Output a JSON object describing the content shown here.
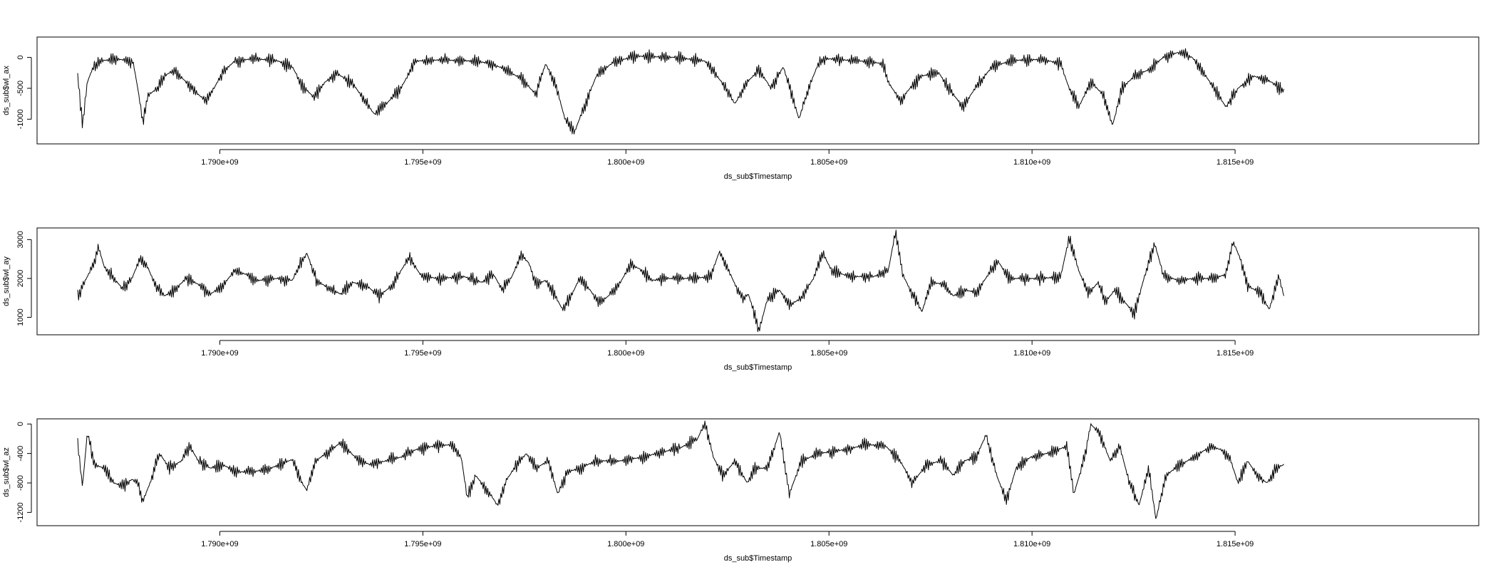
{
  "colors": {
    "background": "#ffffff",
    "line": "#000000",
    "box": "#000000"
  },
  "chart_data": [
    {
      "type": "line",
      "xlabel": "ds_sub$Timestamp",
      "ylabel": "ds_sub$wl_ax",
      "x_range": [
        1786500000,
        1816200000
      ],
      "xlim": [
        1785500000,
        1821000000
      ],
      "ylim": [
        -1400,
        330
      ],
      "x_ticks": [
        1790000000,
        1795000000,
        1800000000,
        1805000000,
        1810000000,
        1815000000
      ],
      "x_tick_labels": [
        "1.790e+09",
        "1.795e+09",
        "1.800e+09",
        "1.805e+09",
        "1.810e+09",
        "1.815e+09"
      ],
      "y_ticks": [
        0,
        -500,
        -1000
      ],
      "y_tick_labels": [
        "0",
        "-500",
        "-1000"
      ],
      "anchors": [
        [
          0.0,
          -300
        ],
        [
          0.004,
          -1080
        ],
        [
          0.008,
          -400
        ],
        [
          0.013,
          -150
        ],
        [
          0.02,
          -50
        ],
        [
          0.035,
          -30
        ],
        [
          0.046,
          -80
        ],
        [
          0.05,
          -520
        ],
        [
          0.054,
          -1050
        ],
        [
          0.058,
          -620
        ],
        [
          0.066,
          -500
        ],
        [
          0.072,
          -300
        ],
        [
          0.08,
          -200
        ],
        [
          0.09,
          -400
        ],
        [
          0.1,
          -600
        ],
        [
          0.106,
          -700
        ],
        [
          0.113,
          -500
        ],
        [
          0.12,
          -250
        ],
        [
          0.13,
          -60
        ],
        [
          0.145,
          -20
        ],
        [
          0.165,
          -50
        ],
        [
          0.178,
          -150
        ],
        [
          0.186,
          -450
        ],
        [
          0.196,
          -650
        ],
        [
          0.205,
          -400
        ],
        [
          0.215,
          -260
        ],
        [
          0.228,
          -420
        ],
        [
          0.238,
          -700
        ],
        [
          0.246,
          -920
        ],
        [
          0.256,
          -750
        ],
        [
          0.268,
          -500
        ],
        [
          0.28,
          -60
        ],
        [
          0.3,
          -40
        ],
        [
          0.33,
          -60
        ],
        [
          0.343,
          -100
        ],
        [
          0.355,
          -200
        ],
        [
          0.368,
          -350
        ],
        [
          0.38,
          -600
        ],
        [
          0.388,
          -100
        ],
        [
          0.396,
          -420
        ],
        [
          0.404,
          -1000
        ],
        [
          0.412,
          -1200
        ],
        [
          0.42,
          -800
        ],
        [
          0.43,
          -300
        ],
        [
          0.445,
          -60
        ],
        [
          0.465,
          20
        ],
        [
          0.495,
          0
        ],
        [
          0.52,
          -60
        ],
        [
          0.534,
          -400
        ],
        [
          0.545,
          -750
        ],
        [
          0.555,
          -400
        ],
        [
          0.565,
          -200
        ],
        [
          0.575,
          -500
        ],
        [
          0.585,
          -150
        ],
        [
          0.592,
          -600
        ],
        [
          0.598,
          -1000
        ],
        [
          0.606,
          -500
        ],
        [
          0.614,
          -100
        ],
        [
          0.62,
          -20
        ],
        [
          0.65,
          -60
        ],
        [
          0.668,
          -100
        ],
        [
          0.672,
          -400
        ],
        [
          0.682,
          -700
        ],
        [
          0.69,
          -500
        ],
        [
          0.7,
          -300
        ],
        [
          0.714,
          -250
        ],
        [
          0.724,
          -550
        ],
        [
          0.734,
          -800
        ],
        [
          0.744,
          -500
        ],
        [
          0.758,
          -150
        ],
        [
          0.775,
          -50
        ],
        [
          0.8,
          -30
        ],
        [
          0.815,
          -100
        ],
        [
          0.822,
          -500
        ],
        [
          0.83,
          -800
        ],
        [
          0.84,
          -400
        ],
        [
          0.85,
          -600
        ],
        [
          0.858,
          -1100
        ],
        [
          0.866,
          -500
        ],
        [
          0.876,
          -300
        ],
        [
          0.888,
          -200
        ],
        [
          0.9,
          0
        ],
        [
          0.912,
          80
        ],
        [
          0.924,
          0
        ],
        [
          0.932,
          -200
        ],
        [
          0.942,
          -500
        ],
        [
          0.952,
          -800
        ],
        [
          0.962,
          -500
        ],
        [
          0.975,
          -300
        ],
        [
          0.99,
          -400
        ],
        [
          1.0,
          -550
        ]
      ]
    },
    {
      "type": "line",
      "xlabel": "ds_sub$Timestamp",
      "ylabel": "ds_sub$wl_ay",
      "x_range": [
        1786500000,
        1816200000
      ],
      "xlim": [
        1785500000,
        1821000000
      ],
      "ylim": [
        550,
        3300
      ],
      "x_ticks": [
        1790000000,
        1795000000,
        1800000000,
        1805000000,
        1810000000,
        1815000000
      ],
      "x_tick_labels": [
        "1.790e+09",
        "1.795e+09",
        "1.800e+09",
        "1.805e+09",
        "1.810e+09",
        "1.815e+09"
      ],
      "y_ticks": [
        1000,
        2000,
        3000
      ],
      "y_tick_labels": [
        "1000",
        "2000",
        "3000"
      ],
      "anchors": [
        [
          0.0,
          1550
        ],
        [
          0.008,
          2050
        ],
        [
          0.014,
          2400
        ],
        [
          0.017,
          2850
        ],
        [
          0.022,
          2300
        ],
        [
          0.03,
          2000
        ],
        [
          0.037,
          1750
        ],
        [
          0.045,
          2000
        ],
        [
          0.052,
          2550
        ],
        [
          0.058,
          2300
        ],
        [
          0.064,
          1850
        ],
        [
          0.072,
          1550
        ],
        [
          0.08,
          1700
        ],
        [
          0.09,
          2000
        ],
        [
          0.1,
          1850
        ],
        [
          0.11,
          1600
        ],
        [
          0.12,
          1800
        ],
        [
          0.13,
          2200
        ],
        [
          0.14,
          2100
        ],
        [
          0.15,
          1950
        ],
        [
          0.165,
          2000
        ],
        [
          0.178,
          1950
        ],
        [
          0.185,
          2400
        ],
        [
          0.19,
          2650
        ],
        [
          0.198,
          1950
        ],
        [
          0.208,
          1750
        ],
        [
          0.218,
          1600
        ],
        [
          0.228,
          1900
        ],
        [
          0.24,
          1800
        ],
        [
          0.25,
          1550
        ],
        [
          0.26,
          1800
        ],
        [
          0.268,
          2200
        ],
        [
          0.275,
          2550
        ],
        [
          0.285,
          2050
        ],
        [
          0.3,
          2000
        ],
        [
          0.32,
          2050
        ],
        [
          0.335,
          1900
        ],
        [
          0.345,
          2100
        ],
        [
          0.352,
          1700
        ],
        [
          0.36,
          2050
        ],
        [
          0.368,
          2600
        ],
        [
          0.374,
          2400
        ],
        [
          0.38,
          1850
        ],
        [
          0.388,
          1950
        ],
        [
          0.395,
          1600
        ],
        [
          0.402,
          1200
        ],
        [
          0.41,
          1600
        ],
        [
          0.416,
          2000
        ],
        [
          0.425,
          1700
        ],
        [
          0.432,
          1350
        ],
        [
          0.44,
          1550
        ],
        [
          0.45,
          1900
        ],
        [
          0.458,
          2350
        ],
        [
          0.466,
          2250
        ],
        [
          0.476,
          1950
        ],
        [
          0.49,
          2000
        ],
        [
          0.51,
          2000
        ],
        [
          0.525,
          2050
        ],
        [
          0.532,
          2700
        ],
        [
          0.54,
          2200
        ],
        [
          0.547,
          1700
        ],
        [
          0.552,
          1500
        ],
        [
          0.556,
          1600
        ],
        [
          0.56,
          1200
        ],
        [
          0.565,
          650
        ],
        [
          0.572,
          1500
        ],
        [
          0.582,
          1700
        ],
        [
          0.59,
          1300
        ],
        [
          0.6,
          1500
        ],
        [
          0.61,
          2000
        ],
        [
          0.618,
          2650
        ],
        [
          0.625,
          2200
        ],
        [
          0.64,
          2050
        ],
        [
          0.66,
          2050
        ],
        [
          0.672,
          2200
        ],
        [
          0.678,
          3200
        ],
        [
          0.684,
          2100
        ],
        [
          0.692,
          1600
        ],
        [
          0.7,
          1150
        ],
        [
          0.708,
          1900
        ],
        [
          0.718,
          1850
        ],
        [
          0.726,
          1550
        ],
        [
          0.735,
          1700
        ],
        [
          0.745,
          1650
        ],
        [
          0.755,
          2100
        ],
        [
          0.763,
          2450
        ],
        [
          0.772,
          2000
        ],
        [
          0.8,
          2000
        ],
        [
          0.815,
          2050
        ],
        [
          0.822,
          3050
        ],
        [
          0.83,
          2200
        ],
        [
          0.838,
          1600
        ],
        [
          0.846,
          1900
        ],
        [
          0.852,
          1400
        ],
        [
          0.86,
          1700
        ],
        [
          0.868,
          1400
        ],
        [
          0.876,
          1100
        ],
        [
          0.884,
          2000
        ],
        [
          0.893,
          2900
        ],
        [
          0.9,
          2100
        ],
        [
          0.912,
          1950
        ],
        [
          0.925,
          2000
        ],
        [
          0.94,
          2000
        ],
        [
          0.952,
          2100
        ],
        [
          0.958,
          2950
        ],
        [
          0.964,
          2500
        ],
        [
          0.97,
          1800
        ],
        [
          0.98,
          1650
        ],
        [
          0.988,
          1200
        ],
        [
          0.996,
          2050
        ],
        [
          1.0,
          1550
        ]
      ]
    },
    {
      "type": "line",
      "xlabel": "ds_sub$Timestamp",
      "ylabel": "ds_sub$wl_az",
      "x_range": [
        1786500000,
        1816200000
      ],
      "xlim": [
        1785500000,
        1821000000
      ],
      "ylim": [
        -1380,
        70
      ],
      "x_ticks": [
        1790000000,
        1795000000,
        1800000000,
        1805000000,
        1810000000,
        1815000000
      ],
      "x_tick_labels": [
        "1.790e+09",
        "1.795e+09",
        "1.800e+09",
        "1.805e+09",
        "1.810e+09",
        "1.815e+09"
      ],
      "y_ticks": [
        0,
        -400,
        -800,
        -1200
      ],
      "y_tick_labels": [
        "0",
        "-400",
        "-800",
        "-1200"
      ],
      "anchors": [
        [
          0.0,
          -250
        ],
        [
          0.004,
          -850
        ],
        [
          0.008,
          -120
        ],
        [
          0.014,
          -550
        ],
        [
          0.022,
          -600
        ],
        [
          0.03,
          -800
        ],
        [
          0.038,
          -850
        ],
        [
          0.045,
          -750
        ],
        [
          0.05,
          -800
        ],
        [
          0.054,
          -1050
        ],
        [
          0.06,
          -800
        ],
        [
          0.068,
          -400
        ],
        [
          0.076,
          -600
        ],
        [
          0.086,
          -500
        ],
        [
          0.093,
          -300
        ],
        [
          0.1,
          -500
        ],
        [
          0.11,
          -600
        ],
        [
          0.12,
          -550
        ],
        [
          0.132,
          -650
        ],
        [
          0.145,
          -650
        ],
        [
          0.16,
          -600
        ],
        [
          0.178,
          -480
        ],
        [
          0.184,
          -750
        ],
        [
          0.19,
          -900
        ],
        [
          0.197,
          -500
        ],
        [
          0.208,
          -380
        ],
        [
          0.218,
          -250
        ],
        [
          0.23,
          -450
        ],
        [
          0.242,
          -550
        ],
        [
          0.256,
          -500
        ],
        [
          0.268,
          -450
        ],
        [
          0.28,
          -350
        ],
        [
          0.295,
          -300
        ],
        [
          0.31,
          -280
        ],
        [
          0.318,
          -450
        ],
        [
          0.323,
          -1000
        ],
        [
          0.33,
          -700
        ],
        [
          0.34,
          -900
        ],
        [
          0.348,
          -1100
        ],
        [
          0.356,
          -750
        ],
        [
          0.364,
          -550
        ],
        [
          0.372,
          -400
        ],
        [
          0.38,
          -600
        ],
        [
          0.39,
          -500
        ],
        [
          0.398,
          -950
        ],
        [
          0.406,
          -650
        ],
        [
          0.416,
          -600
        ],
        [
          0.43,
          -500
        ],
        [
          0.45,
          -500
        ],
        [
          0.468,
          -450
        ],
        [
          0.485,
          -380
        ],
        [
          0.5,
          -320
        ],
        [
          0.514,
          -200
        ],
        [
          0.52,
          30
        ],
        [
          0.527,
          -450
        ],
        [
          0.535,
          -700
        ],
        [
          0.545,
          -500
        ],
        [
          0.555,
          -800
        ],
        [
          0.562,
          -600
        ],
        [
          0.572,
          -600
        ],
        [
          0.582,
          -100
        ],
        [
          0.59,
          -950
        ],
        [
          0.6,
          -500
        ],
        [
          0.615,
          -400
        ],
        [
          0.635,
          -350
        ],
        [
          0.655,
          -280
        ],
        [
          0.67,
          -300
        ],
        [
          0.682,
          -500
        ],
        [
          0.692,
          -800
        ],
        [
          0.704,
          -550
        ],
        [
          0.716,
          -500
        ],
        [
          0.726,
          -700
        ],
        [
          0.735,
          -500
        ],
        [
          0.745,
          -450
        ],
        [
          0.753,
          -150
        ],
        [
          0.762,
          -700
        ],
        [
          0.77,
          -1050
        ],
        [
          0.778,
          -600
        ],
        [
          0.79,
          -450
        ],
        [
          0.808,
          -380
        ],
        [
          0.82,
          -300
        ],
        [
          0.826,
          -950
        ],
        [
          0.834,
          -500
        ],
        [
          0.84,
          0
        ],
        [
          0.848,
          -150
        ],
        [
          0.856,
          -500
        ],
        [
          0.864,
          -300
        ],
        [
          0.872,
          -800
        ],
        [
          0.88,
          -1100
        ],
        [
          0.888,
          -600
        ],
        [
          0.894,
          -1300
        ],
        [
          0.902,
          -700
        ],
        [
          0.91,
          -600
        ],
        [
          0.92,
          -500
        ],
        [
          0.93,
          -400
        ],
        [
          0.94,
          -300
        ],
        [
          0.948,
          -350
        ],
        [
          0.956,
          -500
        ],
        [
          0.962,
          -800
        ],
        [
          0.97,
          -500
        ],
        [
          0.978,
          -700
        ],
        [
          0.986,
          -800
        ],
        [
          0.994,
          -600
        ],
        [
          1.0,
          -550
        ]
      ]
    }
  ]
}
